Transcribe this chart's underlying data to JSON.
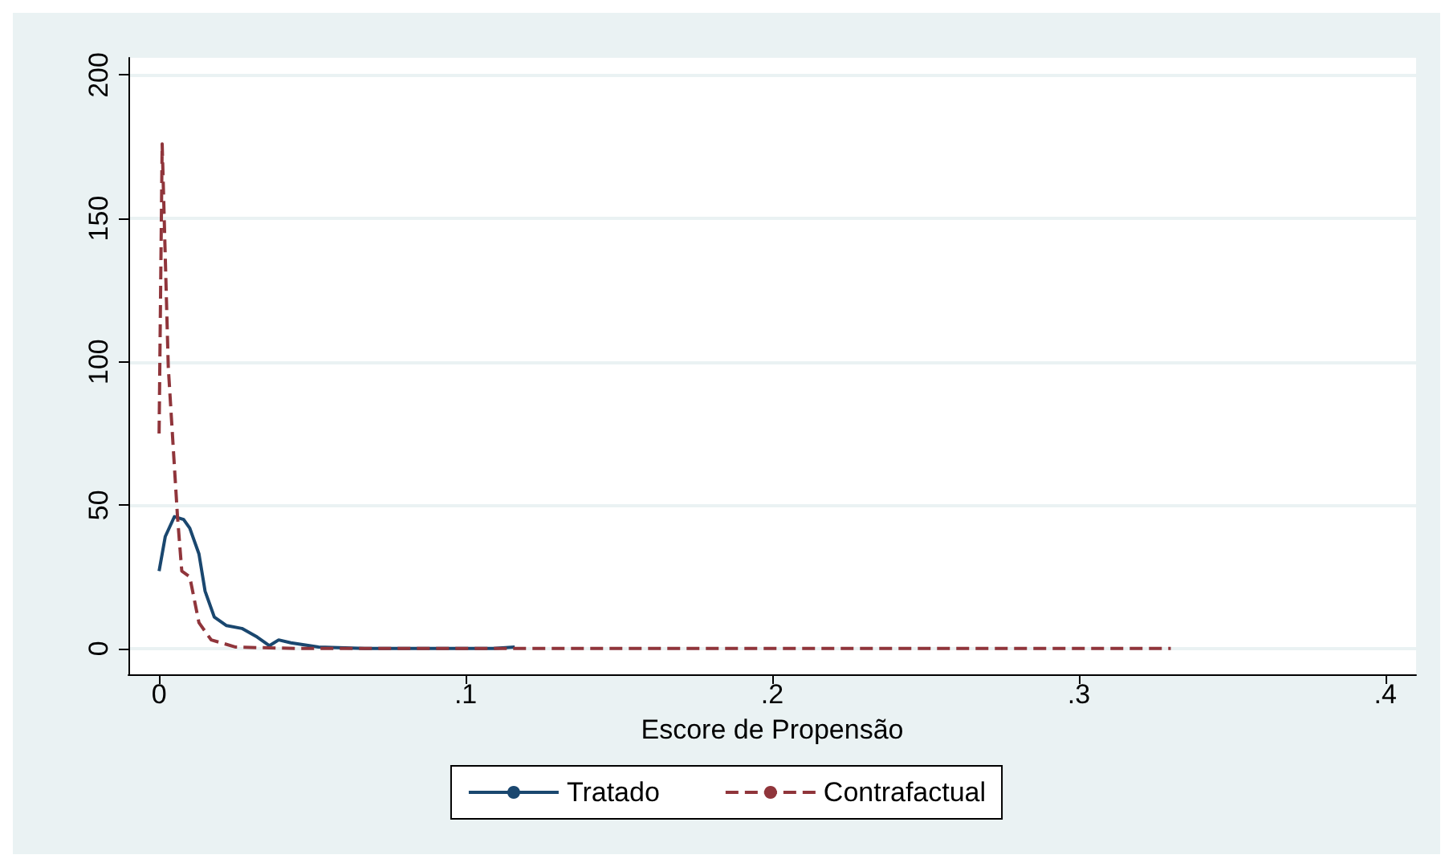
{
  "chart_data": {
    "type": "line",
    "xlabel": "Escore de Propensão",
    "xlim": [
      -0.01,
      0.41
    ],
    "ylim": [
      -9,
      206
    ],
    "xticks": [
      {
        "value": 0,
        "label": "0"
      },
      {
        "value": 0.1,
        "label": ".1"
      },
      {
        "value": 0.2,
        "label": ".2"
      },
      {
        "value": 0.3,
        "label": ".3"
      },
      {
        "value": 0.4,
        "label": ".4"
      }
    ],
    "yticks": [
      0,
      50,
      100,
      150,
      200
    ],
    "grid": "y",
    "legend": "bottom",
    "marker": "none",
    "series": [
      {
        "name": "Tratado",
        "color": "#1a476f",
        "line_style": "solid",
        "x": [
          0,
          0.002,
          0.005,
          0.008,
          0.01,
          0.013,
          0.015,
          0.018,
          0.022,
          0.027,
          0.032,
          0.036,
          0.039,
          0.043,
          0.052,
          0.067,
          0.109,
          0.116
        ],
        "values": [
          27,
          39,
          46,
          45,
          42,
          33,
          20,
          11,
          8,
          7,
          4,
          1,
          3,
          2,
          0.5,
          0,
          0,
          0.5
        ]
      },
      {
        "name": "Contrafactual",
        "color": "#90353b",
        "line_style": "dashed",
        "x": [
          0,
          0.001,
          0.003,
          0.006,
          0.0074,
          0.01,
          0.013,
          0.017,
          0.025,
          0.046,
          0.33
        ],
        "values": [
          75,
          176,
          98,
          46,
          27,
          25,
          9,
          3,
          0.5,
          0,
          0
        ]
      }
    ]
  }
}
